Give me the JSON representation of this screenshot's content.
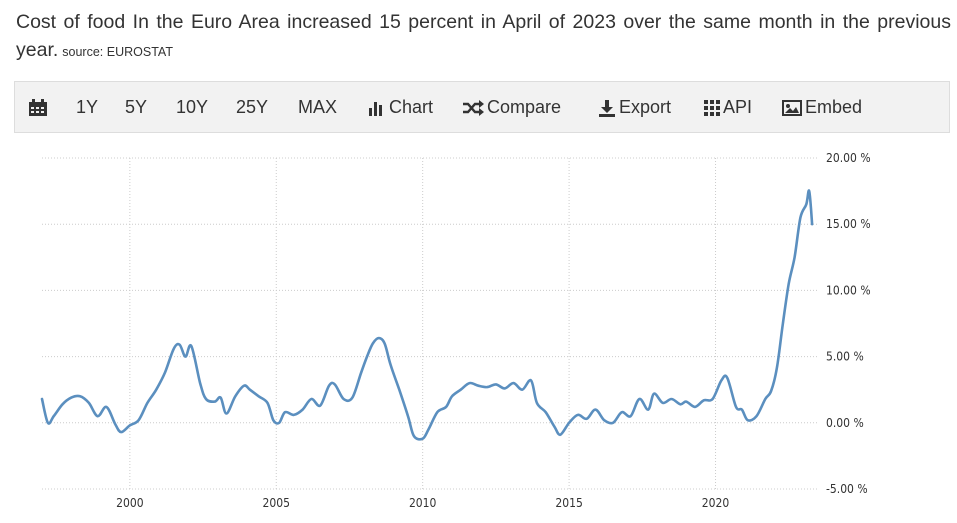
{
  "header": {
    "title": "Cost of food In the Euro Area increased 15 percent in April of 2023 over the same month in the previous year.",
    "source": "source: EUROSTAT"
  },
  "toolbar": {
    "ranges": [
      "1Y",
      "5Y",
      "10Y",
      "25Y",
      "MAX"
    ],
    "chart_label": "Chart",
    "compare_label": "Compare",
    "export_label": "Export",
    "api_label": "API",
    "embed_label": "Embed",
    "icons": [
      "calendar-icon",
      "bar-chart-icon",
      "shuffle-icon",
      "download-icon",
      "grid-icon",
      "image-icon"
    ]
  },
  "chart_data": {
    "type": "line",
    "title": "",
    "xlabel": "",
    "ylabel": "",
    "x_ticks": [
      "2000",
      "2005",
      "2010",
      "2015",
      "2020"
    ],
    "y_ticks": [
      "20.00 %",
      "15.00 %",
      "10.00 %",
      "5.00 %",
      "0.00 %",
      "-5.00 %"
    ],
    "ylim": [
      -5,
      20
    ],
    "xlim": [
      1997.0,
      2023.5
    ],
    "grid": true,
    "line_color": "#5b8fbf",
    "series": [
      {
        "name": "",
        "points": [
          [
            1997.0,
            1.8
          ],
          [
            1997.2,
            0.0
          ],
          [
            1997.4,
            0.5
          ],
          [
            1997.7,
            1.4
          ],
          [
            1998.0,
            1.9
          ],
          [
            1998.3,
            2.0
          ],
          [
            1998.6,
            1.5
          ],
          [
            1998.9,
            0.5
          ],
          [
            1999.2,
            1.2
          ],
          [
            1999.5,
            -0.1
          ],
          [
            1999.7,
            -0.7
          ],
          [
            2000.0,
            -0.2
          ],
          [
            2000.3,
            0.2
          ],
          [
            2000.6,
            1.5
          ],
          [
            2000.9,
            2.5
          ],
          [
            2001.2,
            3.8
          ],
          [
            2001.5,
            5.6
          ],
          [
            2001.7,
            5.9
          ],
          [
            2001.9,
            5.0
          ],
          [
            2002.1,
            5.8
          ],
          [
            2002.4,
            3.0
          ],
          [
            2002.6,
            1.8
          ],
          [
            2002.9,
            1.6
          ],
          [
            2003.1,
            1.9
          ],
          [
            2003.3,
            0.7
          ],
          [
            2003.6,
            2.0
          ],
          [
            2003.9,
            2.8
          ],
          [
            2004.1,
            2.5
          ],
          [
            2004.4,
            2.0
          ],
          [
            2004.7,
            1.5
          ],
          [
            2004.9,
            0.2
          ],
          [
            2005.1,
            0.0
          ],
          [
            2005.3,
            0.8
          ],
          [
            2005.6,
            0.6
          ],
          [
            2005.9,
            1.0
          ],
          [
            2006.2,
            1.8
          ],
          [
            2006.5,
            1.3
          ],
          [
            2006.8,
            2.8
          ],
          [
            2007.0,
            2.9
          ],
          [
            2007.3,
            1.8
          ],
          [
            2007.6,
            1.9
          ],
          [
            2007.9,
            3.8
          ],
          [
            2008.1,
            5.0
          ],
          [
            2008.3,
            6.0
          ],
          [
            2008.5,
            6.4
          ],
          [
            2008.7,
            6.0
          ],
          [
            2008.9,
            4.4
          ],
          [
            2009.2,
            2.5
          ],
          [
            2009.5,
            0.5
          ],
          [
            2009.7,
            -1.0
          ],
          [
            2010.0,
            -1.2
          ],
          [
            2010.2,
            -0.5
          ],
          [
            2010.5,
            0.8
          ],
          [
            2010.8,
            1.2
          ],
          [
            2011.0,
            2.0
          ],
          [
            2011.3,
            2.5
          ],
          [
            2011.6,
            3.0
          ],
          [
            2011.9,
            2.8
          ],
          [
            2012.2,
            2.7
          ],
          [
            2012.5,
            2.9
          ],
          [
            2012.8,
            2.6
          ],
          [
            2013.1,
            3.0
          ],
          [
            2013.4,
            2.5
          ],
          [
            2013.7,
            3.2
          ],
          [
            2013.9,
            1.5
          ],
          [
            2014.2,
            0.8
          ],
          [
            2014.5,
            -0.3
          ],
          [
            2014.7,
            -0.9
          ],
          [
            2015.0,
            0.0
          ],
          [
            2015.3,
            0.6
          ],
          [
            2015.6,
            0.3
          ],
          [
            2015.9,
            1.0
          ],
          [
            2016.2,
            0.2
          ],
          [
            2016.5,
            0.0
          ],
          [
            2016.8,
            0.8
          ],
          [
            2017.1,
            0.5
          ],
          [
            2017.4,
            1.8
          ],
          [
            2017.7,
            1.0
          ],
          [
            2017.9,
            2.2
          ],
          [
            2018.2,
            1.5
          ],
          [
            2018.5,
            1.8
          ],
          [
            2018.8,
            1.4
          ],
          [
            2019.0,
            1.6
          ],
          [
            2019.3,
            1.2
          ],
          [
            2019.6,
            1.7
          ],
          [
            2019.9,
            1.8
          ],
          [
            2020.2,
            3.2
          ],
          [
            2020.4,
            3.4
          ],
          [
            2020.7,
            1.2
          ],
          [
            2020.9,
            1.0
          ],
          [
            2021.1,
            0.2
          ],
          [
            2021.4,
            0.5
          ],
          [
            2021.7,
            1.8
          ],
          [
            2021.9,
            2.4
          ],
          [
            2022.1,
            4.2
          ],
          [
            2022.3,
            7.5
          ],
          [
            2022.5,
            10.5
          ],
          [
            2022.7,
            12.5
          ],
          [
            2022.9,
            15.5
          ],
          [
            2023.1,
            16.5
          ],
          [
            2023.2,
            17.5
          ],
          [
            2023.3,
            15.0
          ]
        ]
      }
    ]
  }
}
